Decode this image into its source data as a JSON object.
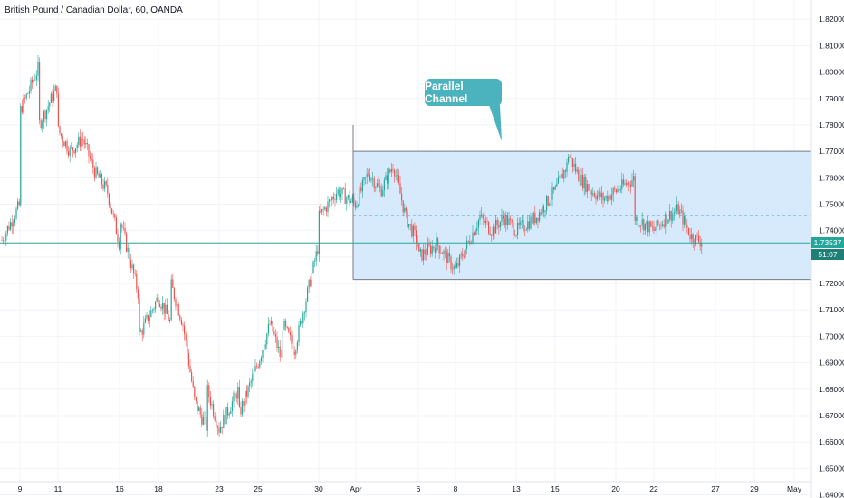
{
  "chart_title": "British Pound / Canadian Dollar, 60, OANDA",
  "callout_label": "Parallel Channel",
  "price_tag": "1.73537",
  "countdown_tag": "51:07",
  "colors": {
    "up": "#26a69a",
    "down": "#ef5350",
    "channel_fill": "#cfe6fb",
    "channel_border": "#787b86",
    "callout": "#4bb3bd",
    "price_line": "#26a69a"
  },
  "chart_data": {
    "type": "candlestick",
    "title": "British Pound / Canadian Dollar, 60, OANDA",
    "y_ticks": [
      "1.82000",
      "1.81000",
      "1.80000",
      "1.79000",
      "1.78000",
      "1.77000",
      "1.76000",
      "1.75000",
      "1.74000",
      "1.73000",
      "1.72000",
      "1.71000",
      "1.70000",
      "1.69000",
      "1.68000",
      "1.67000",
      "1.66000",
      "1.65000",
      "1.64000"
    ],
    "ylim": [
      1.6395,
      1.8235
    ],
    "x_ticks": [
      "9",
      "11",
      "16",
      "18",
      "23",
      "25",
      "30",
      "Apr",
      "6",
      "8",
      "13",
      "15",
      "20",
      "22",
      "27",
      "29",
      "May"
    ],
    "last_price": 1.73537,
    "channel": {
      "upper": 1.77,
      "lower": 1.7215,
      "mid": 1.7457,
      "start": "Apr",
      "end": "May"
    },
    "price_path": [
      {
        "t": "Mar 8",
        "p": 1.735
      },
      {
        "t": "Mar 9",
        "p": 1.75
      },
      {
        "t": "Mar 9",
        "p": 1.785
      },
      {
        "t": "Mar 10",
        "p": 1.802
      },
      {
        "t": "Mar 10",
        "p": 1.78
      },
      {
        "t": "Mar 11",
        "p": 1.795
      },
      {
        "t": "Mar 11",
        "p": 1.778
      },
      {
        "t": "Mar 12",
        "p": 1.77
      },
      {
        "t": "Mar 13",
        "p": 1.775
      },
      {
        "t": "Mar 14",
        "p": 1.762
      },
      {
        "t": "Mar 15",
        "p": 1.755
      },
      {
        "t": "Mar 16",
        "p": 1.735
      },
      {
        "t": "Mar 16",
        "p": 1.745
      },
      {
        "t": "Mar 17",
        "p": 1.715
      },
      {
        "t": "Mar 17",
        "p": 1.7
      },
      {
        "t": "Mar 18",
        "p": 1.715
      },
      {
        "t": "Mar 19",
        "p": 1.705
      },
      {
        "t": "Mar 19",
        "p": 1.72
      },
      {
        "t": "Mar 20",
        "p": 1.705
      },
      {
        "t": "Mar 21",
        "p": 1.675
      },
      {
        "t": "Mar 22",
        "p": 1.665
      },
      {
        "t": "Mar 22",
        "p": 1.68
      },
      {
        "t": "Mar 23",
        "p": 1.665
      },
      {
        "t": "Mar 24",
        "p": 1.68
      },
      {
        "t": "Mar 24",
        "p": 1.67
      },
      {
        "t": "Mar 25",
        "p": 1.69
      },
      {
        "t": "Mar 26",
        "p": 1.705
      },
      {
        "t": "Mar 27",
        "p": 1.69
      },
      {
        "t": "Mar 27",
        "p": 1.705
      },
      {
        "t": "Mar 28",
        "p": 1.695
      },
      {
        "t": "Mar 29",
        "p": 1.715
      },
      {
        "t": "Mar 30",
        "p": 1.735
      },
      {
        "t": "Mar 30",
        "p": 1.745
      },
      {
        "t": "Mar 31",
        "p": 1.755
      },
      {
        "t": "Apr 1",
        "p": 1.75
      },
      {
        "t": "Apr 2",
        "p": 1.762
      },
      {
        "t": "Apr 3",
        "p": 1.755
      },
      {
        "t": "Apr 4",
        "p": 1.765
      },
      {
        "t": "Apr 5",
        "p": 1.745
      },
      {
        "t": "Apr 6",
        "p": 1.735
      },
      {
        "t": "Apr 6",
        "p": 1.73
      },
      {
        "t": "Apr 7",
        "p": 1.735
      },
      {
        "t": "Apr 8",
        "p": 1.725
      },
      {
        "t": "Apr 9",
        "p": 1.735
      },
      {
        "t": "Apr 10",
        "p": 1.745
      },
      {
        "t": "Apr 11",
        "p": 1.74
      },
      {
        "t": "Apr 12",
        "p": 1.745
      },
      {
        "t": "Apr 13",
        "p": 1.74
      },
      {
        "t": "Apr 14",
        "p": 1.745
      },
      {
        "t": "Apr 15",
        "p": 1.755
      },
      {
        "t": "Apr 16",
        "p": 1.765
      },
      {
        "t": "Apr 16",
        "p": 1.77
      },
      {
        "t": "Apr 17",
        "p": 1.76
      },
      {
        "t": "Apr 18",
        "p": 1.755
      },
      {
        "t": "Apr 19",
        "p": 1.752
      },
      {
        "t": "Apr 20",
        "p": 1.755
      },
      {
        "t": "Apr 21",
        "p": 1.76
      },
      {
        "t": "Apr 21",
        "p": 1.745
      },
      {
        "t": "Apr 22",
        "p": 1.74
      },
      {
        "t": "Apr 23",
        "p": 1.745
      },
      {
        "t": "Apr 24",
        "p": 1.748
      },
      {
        "t": "Apr 25",
        "p": 1.738
      },
      {
        "t": "Apr 26",
        "p": 1.7354
      }
    ]
  }
}
